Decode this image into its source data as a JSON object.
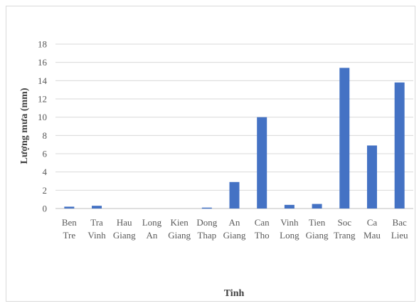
{
  "chart_data": {
    "type": "bar",
    "categories": [
      [
        "Ben",
        "Tre"
      ],
      [
        "Tra",
        "Vinh"
      ],
      [
        "Hau",
        "Giang"
      ],
      [
        "Long",
        "An"
      ],
      [
        "Kien",
        "Giang"
      ],
      [
        "Dong",
        "Thap"
      ],
      [
        "An",
        "Giang"
      ],
      [
        "Can",
        "Tho"
      ],
      [
        "Vinh",
        "Long"
      ],
      [
        "Tien",
        "Giang"
      ],
      [
        "Soc",
        "Trang"
      ],
      [
        "Ca",
        "Mau"
      ],
      [
        "Bac",
        "Lieu"
      ]
    ],
    "values": [
      0.2,
      0.3,
      0,
      0,
      0,
      0.1,
      2.9,
      10.0,
      0.4,
      0.5,
      15.4,
      6.9,
      13.8
    ],
    "xlabel": "Tinh",
    "ylabel": "Lượng mưa (mm)",
    "ylim": [
      0,
      18
    ],
    "yticks": [
      0,
      2,
      4,
      6,
      8,
      10,
      12,
      14,
      16,
      18
    ],
    "grid": true,
    "colors": {
      "bar": "#4472c4",
      "grid": "#d9d9d9",
      "axis": "#bfbfbf",
      "text": "#595959"
    }
  }
}
